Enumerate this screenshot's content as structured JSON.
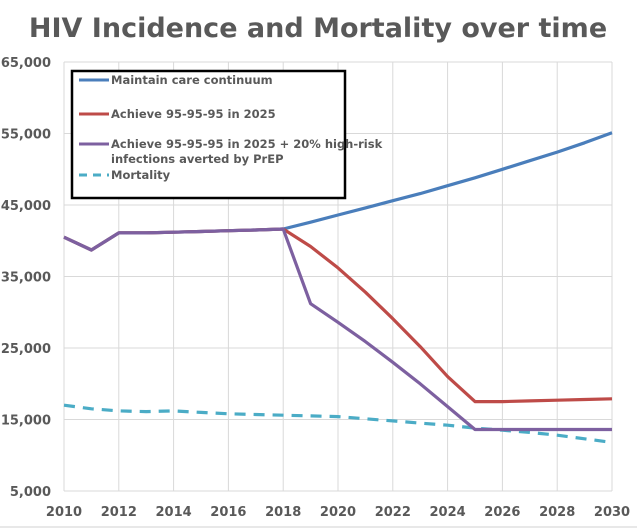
{
  "chart_data": {
    "type": "line",
    "title": "HIV Incidence and Mortality over time",
    "xlabel": "",
    "ylabel": "",
    "xlim": [
      2010,
      2030
    ],
    "ylim": [
      5000,
      65000
    ],
    "grid": true,
    "legend_position": "top-left",
    "x_ticks": [
      2010,
      2012,
      2014,
      2016,
      2018,
      2020,
      2022,
      2024,
      2026,
      2028,
      2030
    ],
    "x_tick_labels": [
      "2010",
      "2012",
      "2014",
      "2016",
      "2018",
      "2020",
      "2022",
      "2024",
      "2026",
      "2028",
      "2030"
    ],
    "y_ticks": [
      5000,
      15000,
      25000,
      35000,
      45000,
      55000,
      65000
    ],
    "y_tick_labels": [
      "5,000",
      "15,000",
      "25,000",
      "35,000",
      "45,000",
      "55,000",
      "65,000"
    ],
    "series": [
      {
        "name": "Maintain care continuum",
        "color": "#4a7ebb",
        "dash": false,
        "x": [
          2010,
          2011,
          2012,
          2013,
          2014,
          2015,
          2016,
          2017,
          2018,
          2019,
          2020,
          2021,
          2022,
          2023,
          2024,
          2025,
          2026,
          2027,
          2028,
          2029,
          2030
        ],
        "values": [
          40500,
          38700,
          41100,
          41100,
          41200,
          41300,
          41400,
          41500,
          41650,
          42600,
          43600,
          44600,
          45600,
          46600,
          47700,
          48800,
          50000,
          51200,
          52400,
          53700,
          55100
        ]
      },
      {
        "name": "Achieve 95-95-95 in 2025",
        "color": "#be4b48",
        "dash": false,
        "x": [
          2010,
          2011,
          2012,
          2013,
          2014,
          2015,
          2016,
          2017,
          2018,
          2019,
          2020,
          2021,
          2022,
          2023,
          2024,
          2025,
          2026,
          2027,
          2028,
          2029,
          2030
        ],
        "values": [
          40500,
          38700,
          41100,
          41100,
          41200,
          41300,
          41400,
          41500,
          41650,
          39200,
          36200,
          32800,
          29100,
          25200,
          21000,
          17500,
          17500,
          17600,
          17700,
          17800,
          17900
        ]
      },
      {
        "name": "Achieve 95-95-95 in 2025 + 20% high-risk infections averted by PrEP",
        "color": "#7d60a0",
        "dash": false,
        "x": [
          2010,
          2011,
          2012,
          2013,
          2014,
          2015,
          2016,
          2017,
          2018,
          2019,
          2020,
          2021,
          2022,
          2023,
          2024,
          2025,
          2026,
          2027,
          2028,
          2029,
          2030
        ],
        "values": [
          40500,
          38700,
          41100,
          41100,
          41200,
          41300,
          41400,
          41500,
          41650,
          31200,
          28600,
          25900,
          23000,
          20000,
          16800,
          13600,
          13600,
          13600,
          13600,
          13600,
          13600
        ]
      },
      {
        "name": "Mortality",
        "color": "#4bacc6",
        "dash": true,
        "x": [
          2010,
          2011,
          2012,
          2013,
          2014,
          2015,
          2016,
          2017,
          2018,
          2019,
          2020,
          2021,
          2022,
          2023,
          2024,
          2025,
          2026,
          2027,
          2028,
          2029,
          2030
        ],
        "values": [
          17000,
          16500,
          16200,
          16100,
          16200,
          16000,
          15800,
          15700,
          15600,
          15500,
          15400,
          15100,
          14800,
          14500,
          14200,
          13800,
          13500,
          13200,
          12800,
          12300,
          11800
        ]
      }
    ]
  }
}
